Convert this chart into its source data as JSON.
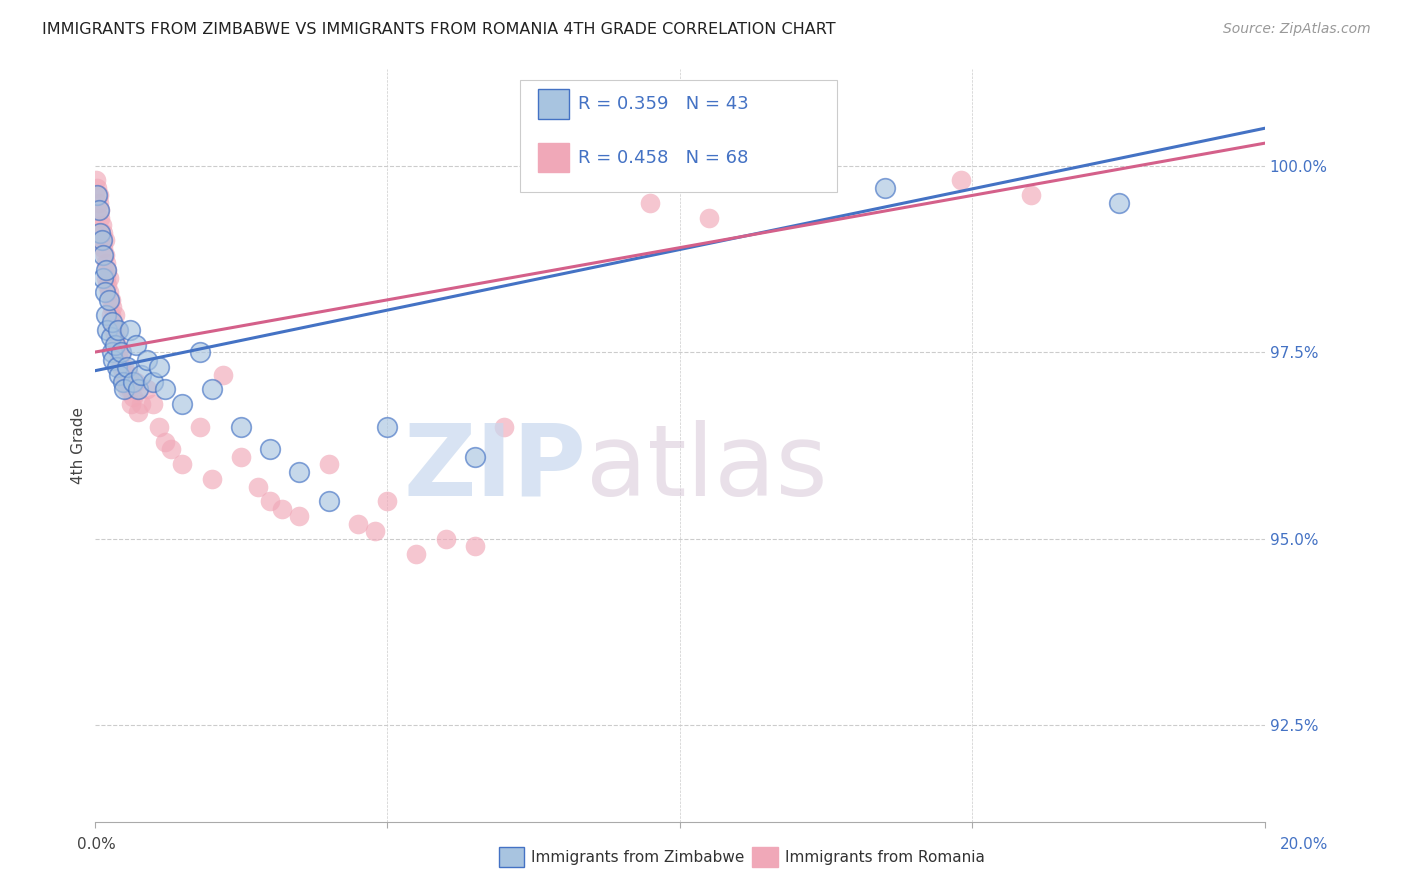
{
  "title": "IMMIGRANTS FROM ZIMBABWE VS IMMIGRANTS FROM ROMANIA 4TH GRADE CORRELATION CHART",
  "source": "Source: ZipAtlas.com",
  "ylabel": "4th Grade",
  "y_ticks": [
    92.5,
    95.0,
    97.5,
    100.0
  ],
  "y_tick_labels": [
    "92.5%",
    "95.0%",
    "97.5%",
    "100.0%"
  ],
  "xlim": [
    0.0,
    20.0
  ],
  "ylim": [
    91.2,
    101.3
  ],
  "legend_r_zimbabwe": "R = 0.359",
  "legend_n_zimbabwe": "N = 43",
  "legend_r_romania": "R = 0.458",
  "legend_n_romania": "N = 68",
  "legend_label_zimbabwe": "Immigrants from Zimbabwe",
  "legend_label_romania": "Immigrants from Romania",
  "color_zimbabwe": "#a8c4e0",
  "color_romania": "#f0a8b8",
  "color_trendline_zimbabwe": "#4472c4",
  "color_trendline_romania": "#d4608a",
  "color_legend_text": "#4472c4",
  "zimbabwe_x": [
    0.05,
    0.08,
    0.1,
    0.12,
    0.15,
    0.15,
    0.18,
    0.2,
    0.2,
    0.22,
    0.25,
    0.28,
    0.3,
    0.3,
    0.32,
    0.35,
    0.38,
    0.4,
    0.42,
    0.45,
    0.48,
    0.5,
    0.55,
    0.6,
    0.65,
    0.7,
    0.75,
    0.8,
    0.9,
    1.0,
    1.1,
    1.2,
    1.5,
    1.8,
    2.0,
    2.5,
    3.0,
    3.5,
    4.0,
    5.0,
    6.5,
    13.5,
    17.5
  ],
  "zimbabwe_y": [
    99.6,
    99.4,
    99.1,
    99.0,
    98.8,
    98.5,
    98.3,
    98.6,
    98.0,
    97.8,
    98.2,
    97.7,
    97.9,
    97.5,
    97.4,
    97.6,
    97.3,
    97.8,
    97.2,
    97.5,
    97.1,
    97.0,
    97.3,
    97.8,
    97.1,
    97.6,
    97.0,
    97.2,
    97.4,
    97.1,
    97.3,
    97.0,
    96.8,
    97.5,
    97.0,
    96.5,
    96.2,
    95.9,
    95.5,
    96.5,
    96.1,
    99.7,
    99.5
  ],
  "romania_x": [
    0.03,
    0.05,
    0.07,
    0.08,
    0.1,
    0.1,
    0.12,
    0.13,
    0.15,
    0.15,
    0.18,
    0.18,
    0.2,
    0.2,
    0.22,
    0.22,
    0.25,
    0.25,
    0.28,
    0.28,
    0.3,
    0.3,
    0.32,
    0.35,
    0.35,
    0.38,
    0.4,
    0.4,
    0.42,
    0.45,
    0.45,
    0.48,
    0.5,
    0.5,
    0.55,
    0.58,
    0.6,
    0.62,
    0.65,
    0.7,
    0.75,
    0.8,
    0.9,
    1.0,
    1.1,
    1.2,
    1.3,
    1.5,
    1.8,
    2.0,
    2.5,
    3.0,
    3.5,
    4.0,
    4.5,
    5.0,
    6.0,
    2.8,
    3.2,
    4.8,
    5.5,
    6.5,
    2.2,
    7.0,
    9.5,
    10.5,
    14.8,
    16.0
  ],
  "romania_y": [
    99.8,
    99.7,
    99.6,
    99.5,
    99.4,
    99.3,
    99.2,
    99.0,
    99.1,
    98.9,
    99.0,
    98.8,
    98.7,
    98.5,
    98.6,
    98.4,
    98.5,
    98.3,
    98.2,
    98.0,
    98.1,
    97.9,
    97.8,
    98.0,
    97.7,
    97.6,
    97.8,
    97.5,
    97.4,
    97.5,
    97.3,
    97.2,
    97.3,
    97.1,
    97.0,
    97.2,
    97.0,
    96.8,
    96.9,
    97.1,
    96.7,
    96.8,
    97.0,
    96.8,
    96.5,
    96.3,
    96.2,
    96.0,
    96.5,
    95.8,
    96.1,
    95.5,
    95.3,
    96.0,
    95.2,
    95.5,
    95.0,
    95.7,
    95.4,
    95.1,
    94.8,
    94.9,
    97.2,
    96.5,
    99.5,
    99.3,
    99.8,
    99.6
  ],
  "trendline_zimbabwe_x0": 0.0,
  "trendline_zimbabwe_y0": 97.25,
  "trendline_zimbabwe_x1": 20.0,
  "trendline_zimbabwe_y1": 100.5,
  "trendline_romania_x0": 0.0,
  "trendline_romania_y0": 97.5,
  "trendline_romania_x1": 20.0,
  "trendline_romania_y1": 100.3
}
